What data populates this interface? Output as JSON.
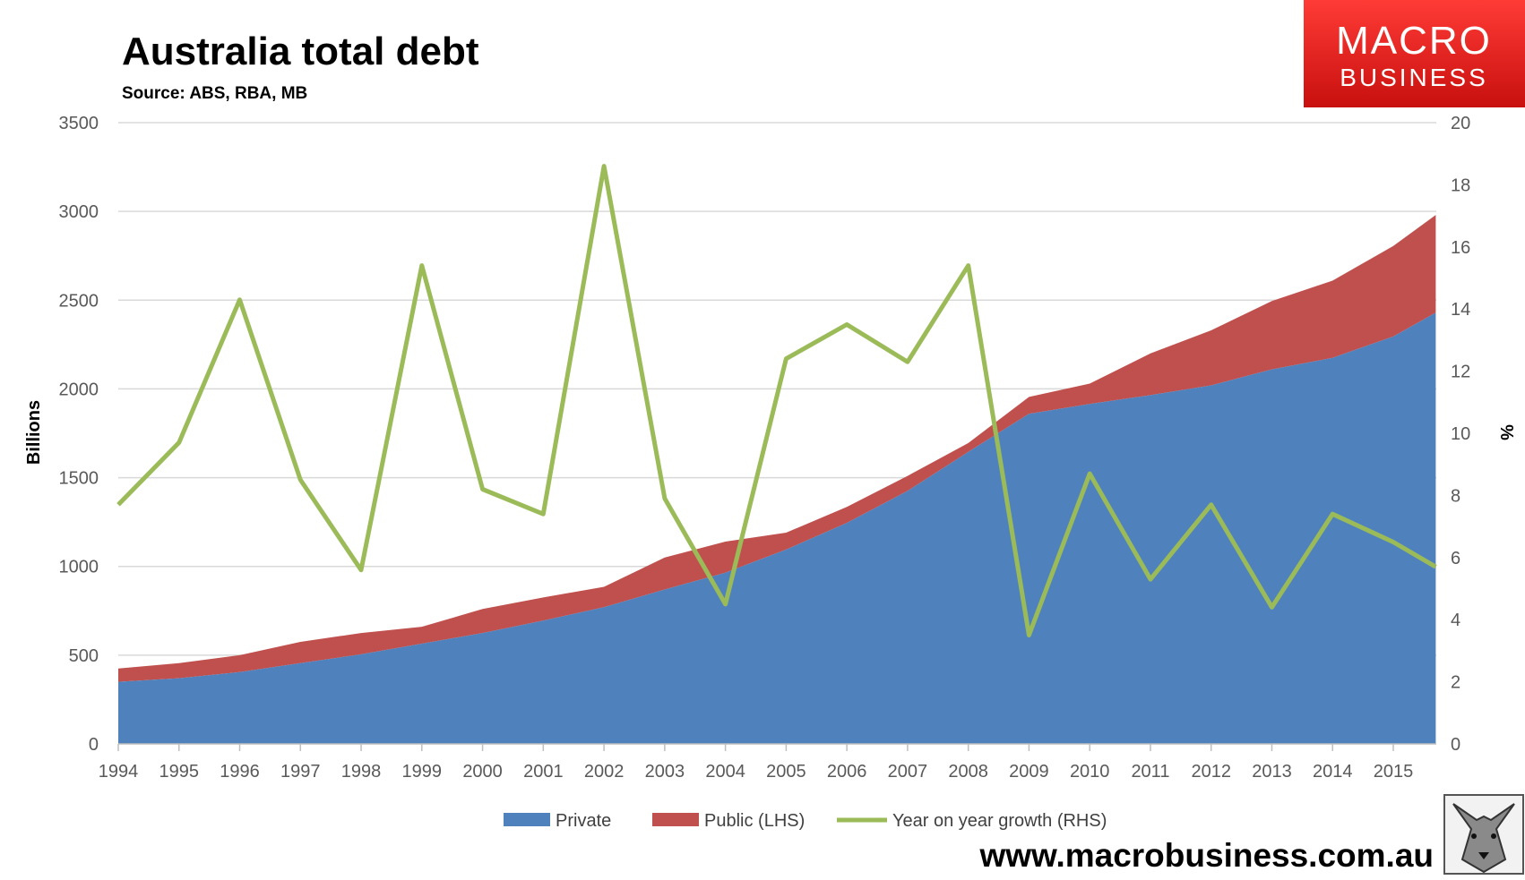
{
  "chart_data": {
    "type": "area",
    "title": "Australia total debt",
    "subtitle": "Source: ABS, RBA, MB",
    "ylabel": "Billions",
    "y2label": "%",
    "ylim": [
      0,
      3500
    ],
    "y2lim": [
      0,
      20
    ],
    "yticks": [
      0,
      500,
      1000,
      1500,
      2000,
      2500,
      3000,
      3500
    ],
    "y2ticks": [
      0,
      2,
      4,
      6,
      8,
      10,
      12,
      14,
      16,
      18,
      20
    ],
    "categories": [
      "1994",
      "1995",
      "1996",
      "1997",
      "1998",
      "1999",
      "2000",
      "2001",
      "2002",
      "2003",
      "2004",
      "2005",
      "2006",
      "2007",
      "2008",
      "2009",
      "2010",
      "2011",
      "2012",
      "2013",
      "2014",
      "2015"
    ],
    "x": [
      1994,
      1995,
      1996,
      1997,
      1998,
      1999,
      2000,
      2001,
      2002,
      2003,
      2004,
      2005,
      2006,
      2007,
      2008,
      2009,
      2010,
      2011,
      2012,
      2013,
      2014,
      2015,
      2015.7
    ],
    "series": [
      {
        "name": "Private",
        "type": "area",
        "axis": "left",
        "color": "#4f81bd",
        "values": [
          350,
          370,
          405,
          455,
          505,
          565,
          625,
          695,
          770,
          870,
          965,
          1095,
          1245,
          1425,
          1645,
          1860,
          1915,
          1965,
          2020,
          2110,
          2175,
          2295,
          2430
        ]
      },
      {
        "name": "Public (LHS)",
        "type": "stacked-area",
        "axis": "left",
        "color": "#c0504d",
        "values": [
          75,
          85,
          95,
          120,
          120,
          95,
          135,
          130,
          115,
          180,
          175,
          95,
          90,
          85,
          50,
          95,
          115,
          235,
          310,
          385,
          435,
          510,
          550
        ]
      },
      {
        "name": "Year on year growth (RHS)",
        "type": "line",
        "axis": "right",
        "color": "#9bbb59",
        "values": [
          7.7,
          9.7,
          14.3,
          8.5,
          5.6,
          15.4,
          8.2,
          7.4,
          18.6,
          7.9,
          4.5,
          12.4,
          13.5,
          12.3,
          15.4,
          3.5,
          8.7,
          5.3,
          7.7,
          4.4,
          7.4,
          6.5,
          5.7
        ]
      }
    ],
    "legend_position": "bottom",
    "grid": true
  },
  "logo": {
    "line1": "MACRO",
    "line2": "BUSINESS",
    "bg_color": "#e3211f"
  },
  "footer_url": "www.macrobusiness.com.au",
  "mascot_icon": "wolf-head-icon"
}
